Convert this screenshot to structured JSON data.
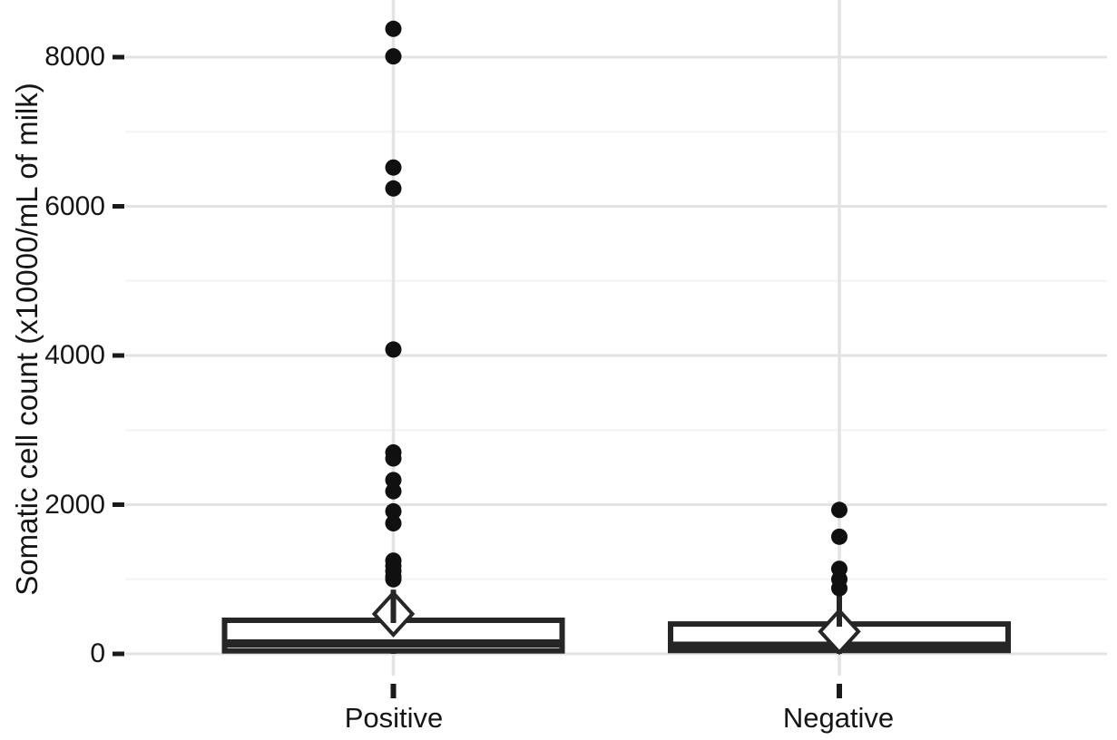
{
  "chart_data": {
    "type": "boxplot",
    "title": "",
    "xlabel": "",
    "ylabel": "Somatic cell count (x10000/mL of milk)",
    "categories": [
      "Positive",
      "Negative"
    ],
    "y_axis": {
      "tick_labels_top_to_bottom": [
        "8000",
        "6000",
        "4000",
        "2000",
        "0"
      ],
      "tick_values": [
        8000,
        6000,
        4000,
        2000,
        0
      ],
      "minor_gridline_values": [
        7000,
        5000,
        3000,
        1000
      ],
      "range_shown": [
        -290,
        8770
      ],
      "grid": "horizontal major and minor gridlines, vertical major gridline per category, no axis lines"
    },
    "legend": "none",
    "series": [
      {
        "name": "Positive",
        "q1": 40,
        "median": 140,
        "q3": 450,
        "whisker_low": 0,
        "whisker_high": 860,
        "mean": 535,
        "outliers": [
          8380,
          8010,
          6520,
          6240,
          4080,
          2700,
          2620,
          2330,
          2180,
          1910,
          1750,
          1250,
          1180,
          1110,
          1040,
          1000
        ]
      },
      {
        "name": "Negative",
        "q1": 45,
        "median": 110,
        "q3": 400,
        "whisker_low": 0,
        "whisker_high": 780,
        "mean": 300,
        "outliers": [
          1930,
          1570,
          1140,
          1000,
          880
        ]
      }
    ],
    "mean_marker": "open diamond",
    "colors": {
      "box_stroke": "#262626",
      "point": "#101010",
      "tick_mark": "#1a1a1a",
      "grid_major": "#e3e3e3",
      "grid_minor": "#f5f5f5",
      "background": "#ffffff",
      "box_fill": "#ffffff"
    }
  }
}
